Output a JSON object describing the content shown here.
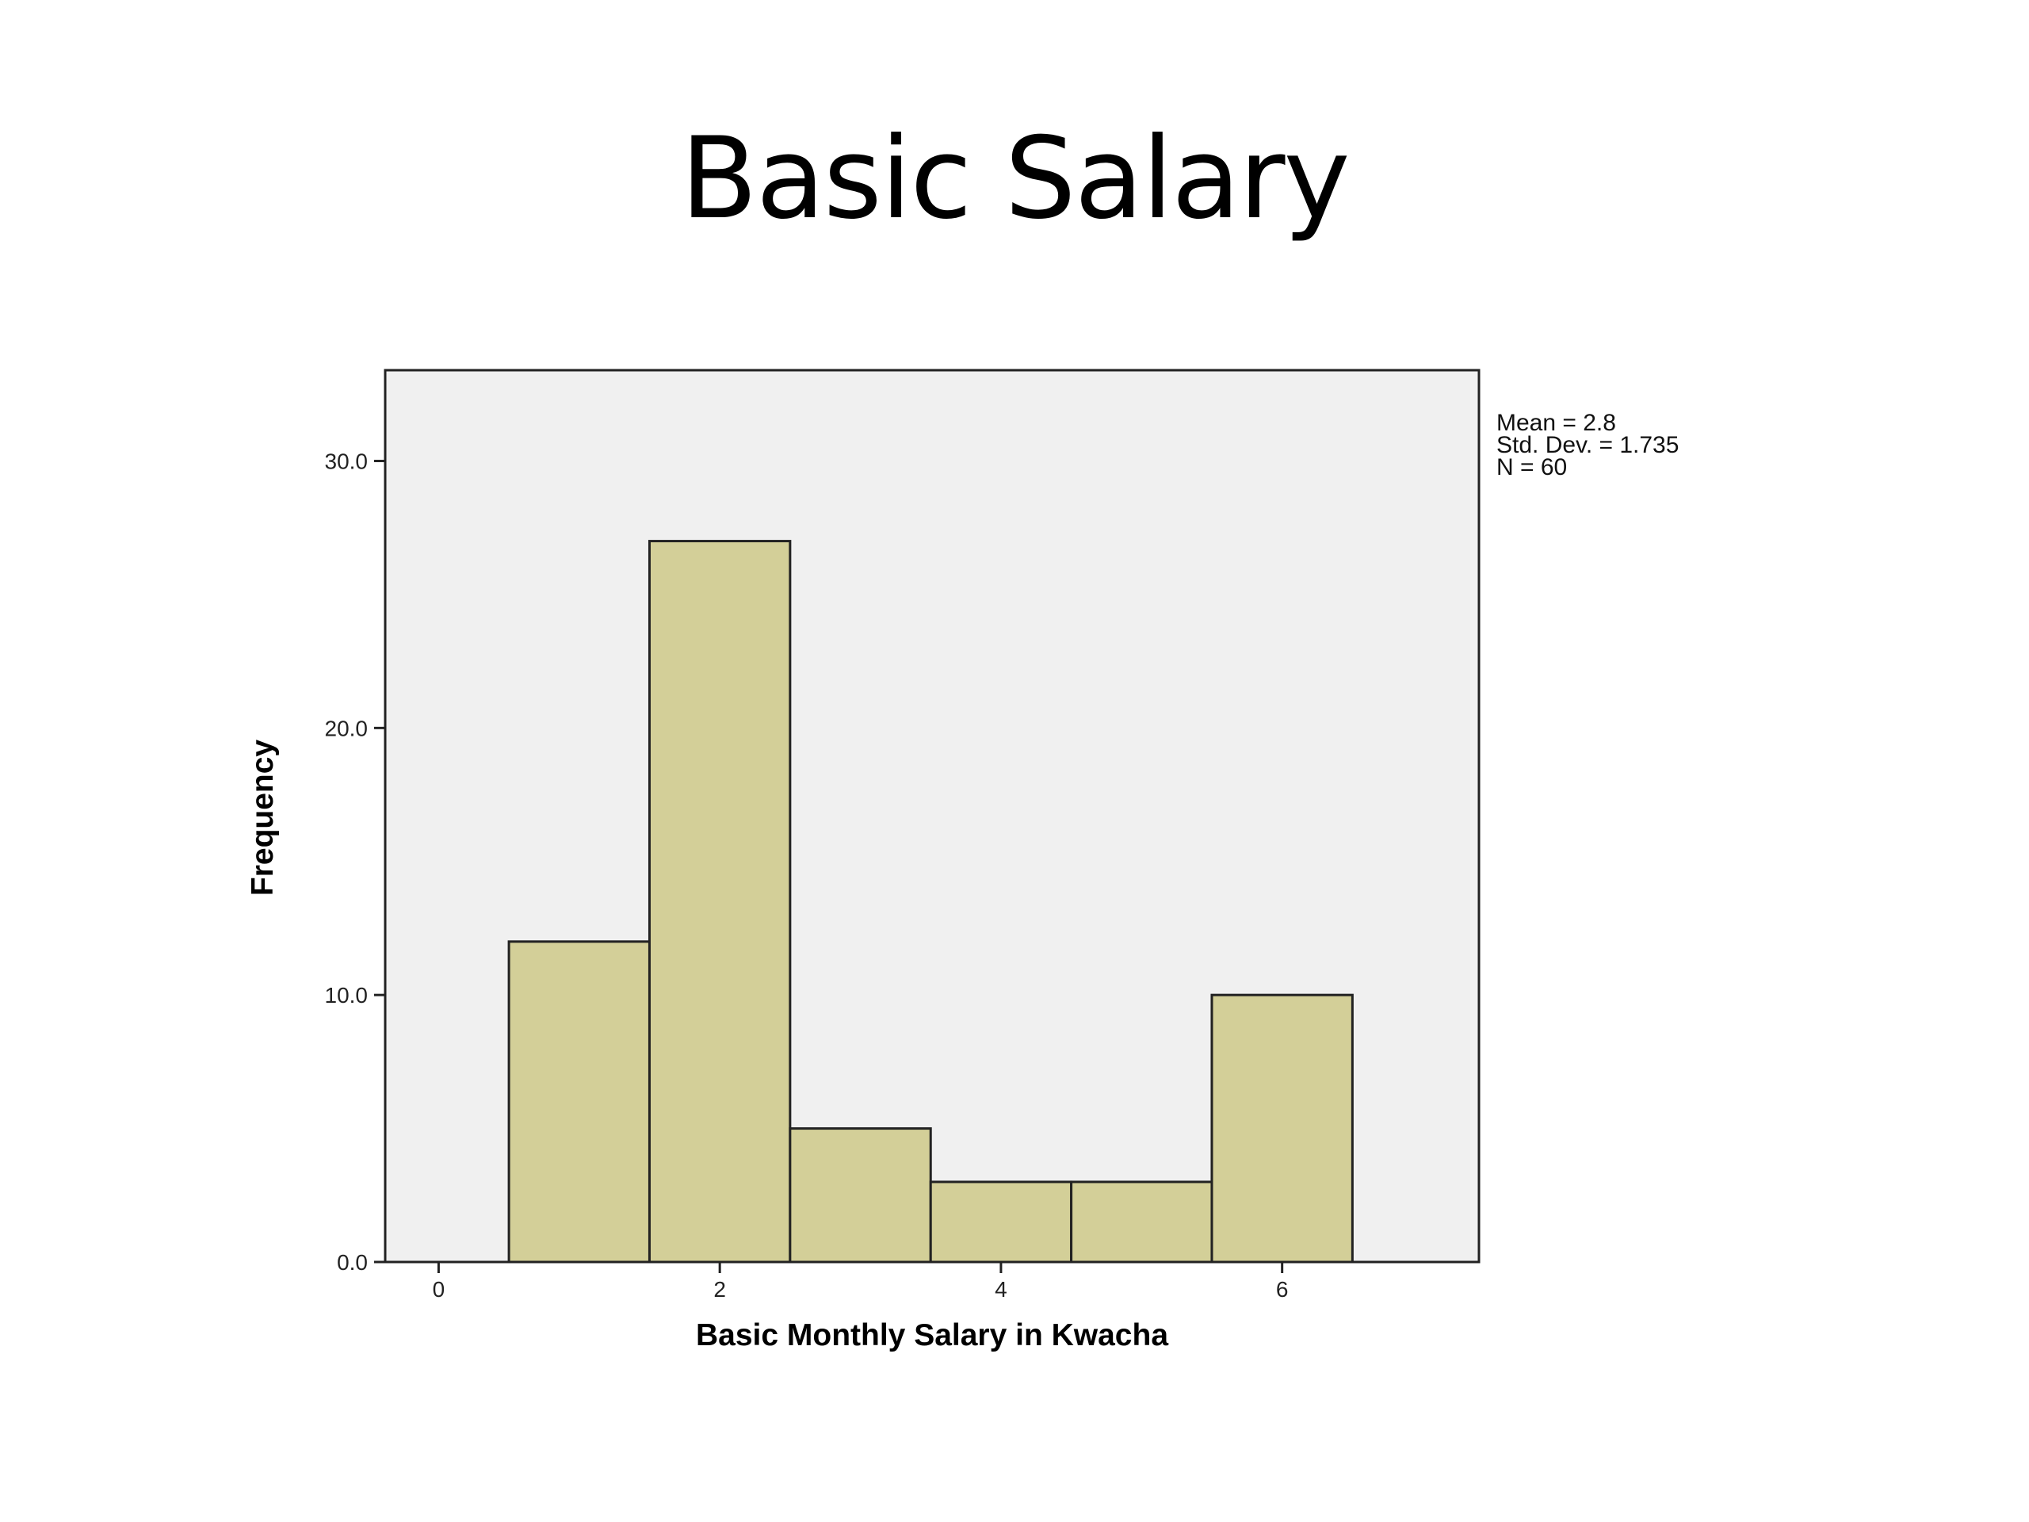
{
  "slide": {
    "title": "Basic Salary"
  },
  "chart_data": {
    "type": "bar",
    "subtype": "histogram",
    "bins": [
      {
        "center": 1,
        "x0": 0.5,
        "x1": 1.5,
        "value": 12
      },
      {
        "center": 2,
        "x0": 1.5,
        "x1": 2.5,
        "value": 27
      },
      {
        "center": 3,
        "x0": 2.5,
        "x1": 3.5,
        "value": 5
      },
      {
        "center": 4,
        "x0": 3.5,
        "x1": 4.5,
        "value": 3
      },
      {
        "center": 5,
        "x0": 4.5,
        "x1": 5.5,
        "value": 3
      },
      {
        "center": 6,
        "x0": 5.5,
        "x1": 6.5,
        "value": 10
      }
    ],
    "categories": [
      "1",
      "2",
      "3",
      "4",
      "5",
      "6"
    ],
    "values": [
      12,
      27,
      5,
      3,
      3,
      10
    ],
    "xlabel": "Basic Monthly Salary in Kwacha",
    "ylabel": "Frequency",
    "xlim": [
      -0.38,
      7.4
    ],
    "ylim": [
      0,
      33.4
    ],
    "xticks": [
      0,
      2,
      4,
      6
    ],
    "xtick_labels": [
      "0",
      "2",
      "4",
      "6"
    ],
    "yticks": [
      0,
      10,
      20,
      30
    ],
    "ytick_labels": [
      "0.0",
      "10.0",
      "20.0",
      "30.0"
    ],
    "grid": false,
    "bar_color": "#d3cf98",
    "plot_background": "#f0f0f0",
    "stats": {
      "mean": "Mean = 2.8",
      "std_dev": "Std. Dev. = 1.735",
      "n": "N = 60"
    }
  }
}
